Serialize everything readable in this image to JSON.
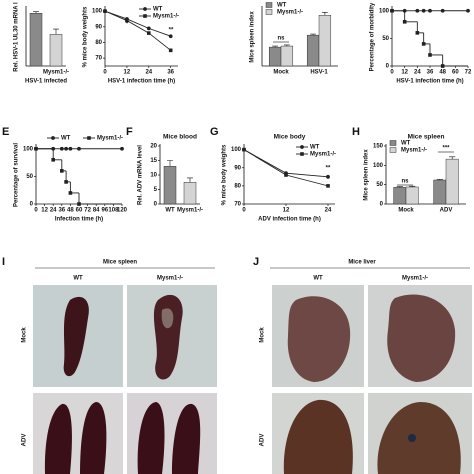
{
  "chart_data": [
    {
      "type": "bar",
      "ylabel": "Rel. HSV-1 UL30 mRNA l",
      "xlabel": "HSV-1 infected",
      "categories": [
        null,
        "Mysm1-/-"
      ],
      "values": [
        1.0,
        0.6
      ],
      "errors": [
        0.03,
        0.1
      ],
      "colors": [
        "#8a8a8a",
        "#d4d4d4"
      ],
      "ylim": [
        0,
        1.1
      ]
    },
    {
      "type": "line",
      "ylabel": "% mice body weights",
      "xlabel": "HSV-1 infection time (h)",
      "x": [
        0,
        12,
        24,
        36
      ],
      "xlim": [
        0,
        40
      ],
      "xticks": [
        0,
        12,
        24,
        36
      ],
      "ylim": [
        65,
        102
      ],
      "yticks": [
        70,
        80,
        90,
        100
      ],
      "legend": "top-right",
      "annotations": [
        "*",
        "**"
      ],
      "series": [
        {
          "name": "WT",
          "color": "#222222",
          "marker": "circle",
          "values": [
            100,
            95,
            89,
            84
          ]
        },
        {
          "name": "Mysm1-/-",
          "color": "#222222",
          "marker": "square",
          "values": [
            100,
            94,
            86,
            75
          ]
        }
      ]
    },
    {
      "type": "bar",
      "ylabel": "Mice spleen index",
      "categories": [
        "Mock",
        "HSV-1"
      ],
      "ylim": [
        0,
        160
      ],
      "legend": "top-left",
      "annotations": [
        "ns"
      ],
      "series": [
        {
          "name": "WT",
          "color": "#8a8a8a",
          "values": [
            52,
            85
          ],
          "errors": [
            3,
            3
          ]
        },
        {
          "name": "Mysm1-/-",
          "color": "#d4d4d4",
          "values": [
            55,
            140
          ],
          "errors": [
            3,
            8
          ]
        }
      ]
    },
    {
      "type": "step",
      "ylabel": "Percentage of morbidity",
      "xlabel": "HSV-1 infection time (h)",
      "x": [
        0,
        12,
        24,
        30,
        36,
        48,
        72
      ],
      "xlim": [
        0,
        72
      ],
      "xticks": [
        0,
        12,
        24,
        36,
        48,
        60,
        72
      ],
      "ylim": [
        0,
        105
      ],
      "yticks": [
        0,
        50,
        100
      ],
      "series": [
        {
          "name": "WT",
          "color": "#222222",
          "marker": "circle",
          "values": [
            100,
            100,
            100,
            100,
            100,
            100,
            100
          ]
        },
        {
          "name": "Mysm1-/-",
          "color": "#222222",
          "marker": "square",
          "values": [
            100,
            80,
            60,
            40,
            20,
            0,
            null
          ]
        }
      ]
    },
    {
      "type": "step",
      "panel": "E",
      "ylabel": "Percentage of survival",
      "xlabel": "Infection time (h)",
      "x": [
        0,
        24,
        36,
        42,
        48,
        60,
        120
      ],
      "xlim": [
        0,
        120
      ],
      "xticks": [
        0,
        12,
        24,
        36,
        48,
        60,
        72,
        84,
        96,
        108,
        120
      ],
      "ylim": [
        0,
        105
      ],
      "yticks": [
        0,
        50,
        100
      ],
      "legend": "top",
      "series": [
        {
          "name": "WT",
          "color": "#222222",
          "marker": "circle",
          "values": [
            100,
            100,
            100,
            100,
            100,
            100,
            100
          ]
        },
        {
          "name": "Mysm1-/-",
          "color": "#222222",
          "marker": "square",
          "values": [
            100,
            80,
            60,
            40,
            20,
            0,
            null
          ]
        }
      ]
    },
    {
      "type": "bar",
      "panel": "F",
      "title": "Mice blood",
      "ylabel": "Rel. ADV mRNA level",
      "categories": [
        "WT",
        "Mysm1-/-"
      ],
      "values": [
        13,
        7.5
      ],
      "errors": [
        2,
        1.5
      ],
      "colors": [
        "#8a8a8a",
        "#d4d4d4"
      ],
      "ylim": [
        0,
        20
      ],
      "yticks": [
        0,
        5,
        10,
        15,
        20
      ]
    },
    {
      "type": "line",
      "panel": "G",
      "title": "Mice body",
      "ylabel": "% mice body weights",
      "xlabel": "ADV infection time (h)",
      "x": [
        0,
        12,
        24
      ],
      "xlim": [
        0,
        26
      ],
      "xticks": [
        0,
        12,
        24
      ],
      "ylim": [
        70,
        102
      ],
      "yticks": [
        70,
        80,
        90,
        100
      ],
      "legend": "top-right",
      "annotations": [
        "**"
      ],
      "series": [
        {
          "name": "WT",
          "color": "#222222",
          "marker": "circle",
          "values": [
            100,
            87,
            85
          ]
        },
        {
          "name": "Mysm1-/-",
          "color": "#222222",
          "marker": "square",
          "values": [
            100,
            86,
            80
          ]
        }
      ]
    },
    {
      "type": "bar",
      "panel": "H",
      "title": "Mice spleen",
      "ylabel": "Mice spleen index",
      "categories": [
        "Mock",
        "ADV"
      ],
      "ylim": [
        0,
        150
      ],
      "yticks": [
        0,
        50,
        100,
        150
      ],
      "legend": "top-left",
      "annotations": [
        "ns",
        "***"
      ],
      "series": [
        {
          "name": "WT",
          "color": "#8a8a8a",
          "values": [
            43,
            62
          ],
          "errors": [
            2,
            2
          ]
        },
        {
          "name": "Mysm1-/-",
          "color": "#d4d4d4",
          "values": [
            44,
            116
          ],
          "errors": [
            2,
            6
          ]
        }
      ]
    }
  ],
  "photo_panels": [
    {
      "panel": "I",
      "title": "Mice spleen",
      "columns": [
        "WT",
        "Mysm1-/-"
      ],
      "rows": [
        "Mock",
        "ADV"
      ]
    },
    {
      "panel": "J",
      "title": "Mice liver",
      "columns": [
        "WT",
        "Mysm1-/-"
      ],
      "rows": [
        "Mock",
        "ADV"
      ]
    }
  ]
}
